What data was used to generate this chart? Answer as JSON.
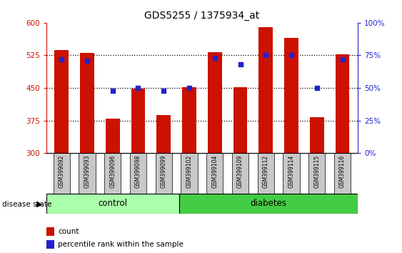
{
  "title": "GDS5255 / 1375934_at",
  "samples": [
    "GSM399092",
    "GSM399093",
    "GSM399096",
    "GSM399098",
    "GSM399099",
    "GSM399102",
    "GSM399104",
    "GSM399109",
    "GSM399112",
    "GSM399114",
    "GSM399115",
    "GSM399116"
  ],
  "red_values": [
    537,
    530,
    380,
    448,
    387,
    452,
    533,
    452,
    590,
    565,
    383,
    527
  ],
  "blue_percentile": [
    72,
    71,
    48,
    50,
    48,
    50,
    73,
    68,
    75,
    75,
    50,
    72
  ],
  "ylim_left": [
    300,
    600
  ],
  "ylim_right": [
    0,
    100
  ],
  "y_ticks_left": [
    300,
    375,
    450,
    525,
    600
  ],
  "y_ticks_right": [
    0,
    25,
    50,
    75,
    100
  ],
  "control_count": 5,
  "diabetes_count": 7,
  "bar_color": "#CC1100",
  "dot_color": "#2222CC",
  "control_color": "#AAFFAA",
  "diabetes_color": "#44CC44",
  "bar_width": 0.55,
  "legend_count_label": "count",
  "legend_percentile_label": "percentile rank within the sample",
  "left_axis_color": "#CC1100",
  "right_axis_color": "#2222CC",
  "sample_box_color": "#C8C8C8",
  "dot_size": 20
}
